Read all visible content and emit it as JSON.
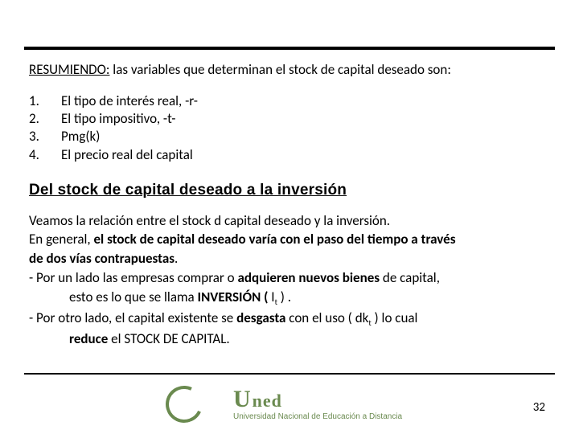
{
  "topRule": {
    "color": "#000000"
  },
  "intro": {
    "lead": "RESUMIENDO:",
    "rest": " las variables que determinan el stock de capital deseado son:"
  },
  "list": [
    {
      "n": "1.",
      "t": "El tipo de interés real, -r-"
    },
    {
      "n": "2.",
      "t": "El tipo impositivo, -t-"
    },
    {
      "n": "3.",
      "t": "Pmg(k)"
    },
    {
      "n": "4.",
      "t": "El precio real del capital"
    }
  ],
  "heading": "Del stock de capital deseado a la inversión",
  "body": {
    "l1": "Veamos la relación entre el stock d capital deseado y la inversión.",
    "l2a": "En general, ",
    "l2b": "el stock de capital deseado varía con el paso del tiempo a través",
    "l3": "de dos vías contrapuestas",
    "l3end": ".",
    "l4a": "- Por un lado las empresas comprar o ",
    "l4b": "adquieren nuevos bienes",
    "l4c": " de capital,",
    "l5a": "esto es lo que se llama ",
    "l5b": "INVERSIÓN ( ",
    "l5b2": "I",
    "l5sub1": "t",
    "l5c": " ) .",
    "l6a": "- Por otro lado, el capital existente se ",
    "l6b": "desgasta",
    "l6c": " con el uso ( ",
    "l6d": "dk",
    "l6sub2": "t",
    "l6e": " )   lo cual",
    "l7a": "reduce",
    "l7b": " el STOCK DE CAPITAL."
  },
  "pageNumber": "32",
  "logo": {
    "wordU": "U",
    "wordRest": "ned",
    "subtitle": "Universidad Nacional de Educación a Distancia",
    "color": "#6a8a4f"
  }
}
